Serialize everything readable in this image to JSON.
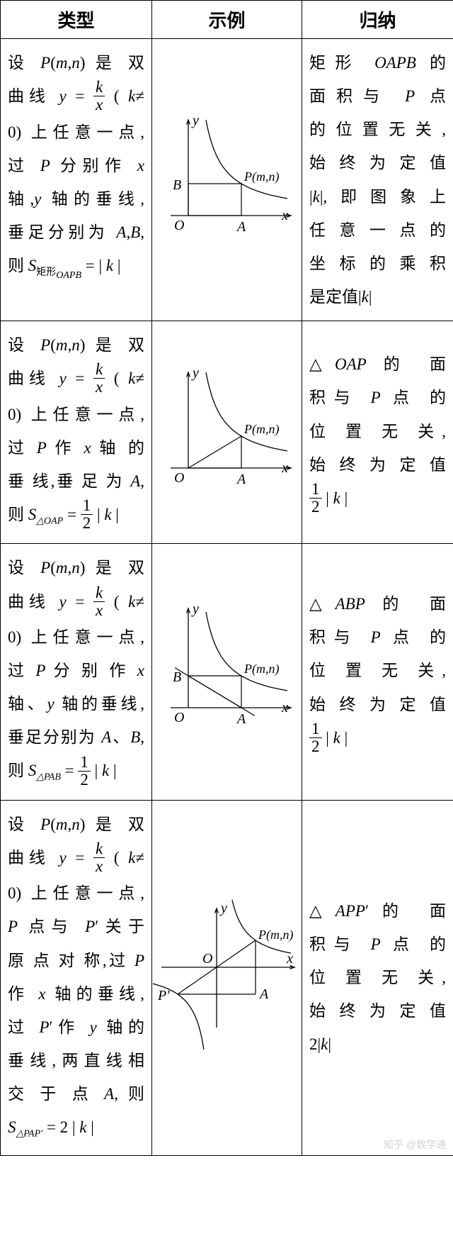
{
  "headers": {
    "c1": "类型",
    "c2": "示例",
    "c3": "归纳"
  },
  "rows": [
    {
      "type_lines": [
        "设 <span class='ital'>P</span>(<span class='ital'>m</span>,<span class='ital'>n</span>) 是 双",
        "曲线 <span class='ital'>y</span> = <span class='frac'><span class='num'>k</span><span class='den'>x</span></span> ( <span class='ital'>k</span>≠",
        "0) 上任意一点,",
        "过 <span class='ital'>P</span> 分别作 <span class='ital'>x</span>",
        "轴,<span class='ital'>y</span> 轴的垂线,",
        "垂足分别为 <span class='ital'>A</span>,<span class='ital'>B</span>,",
        "则 <span class='ital'>S</span><span class='sub'>矩形<span class='subi'>OAPB</span></span> = | <span class='ital'>k</span> |"
      ],
      "concl_lines": [
        "矩形 <span class='ital'>OAPB</span> 的",
        "面积与 <span class='ital'>P</span> 点",
        "的位置无关,",
        "始终为定值",
        "|<span class='ital'>k</span>|,即图象上",
        "任意一点的",
        "坐标的乘积",
        "是定值|<span class='ital'>k</span>|"
      ],
      "diagram": 1
    },
    {
      "type_lines": [
        "设 <span class='ital'>P</span>(<span class='ital'>m</span>,<span class='ital'>n</span>) 是 双",
        "曲线 <span class='ital'>y</span> = <span class='frac'><span class='num'>k</span><span class='den'>x</span></span> ( <span class='ital'>k</span>≠",
        "0) 上任意一点,",
        "过 <span class='ital'>P</span> 作 <span class='ital'>x</span> 轴 的",
        "垂 线,垂 足 为 <span class='ital'>A</span>,",
        "则 <span class='ital'>S</span><span class='subi'>△OAP</span> = <span class='frac nfrac'><span class='num'>1</span><span class='den'>2</span></span> | <span class='ital'>k</span> |"
      ],
      "concl_lines": [
        "△<span class='ital'>OAP</span> 的 面",
        "积与 <span class='ital'>P</span> 点 的",
        "位 置 无 关,",
        "始终为定值",
        "<span class='frac nfrac'><span class='num'>1</span><span class='den'>2</span></span> | <span class='ital'>k</span> |"
      ],
      "diagram": 2
    },
    {
      "type_lines": [
        "设 <span class='ital'>P</span>(<span class='ital'>m</span>,<span class='ital'>n</span>) 是 双",
        "曲线 <span class='ital'>y</span> = <span class='frac'><span class='num'>k</span><span class='den'>x</span></span> ( <span class='ital'>k</span>≠",
        "0) 上任意一点,",
        "过 <span class='ital'>P</span> 分 别 作 <span class='ital'>x</span>",
        "轴、<span class='ital'>y</span> 轴的垂线,",
        "垂足分别为 <span class='ital'>A</span>、<span class='ital'>B</span>,",
        "则 <span class='ital'>S</span><span class='subi'>△PAB</span> = <span class='frac nfrac'><span class='num'>1</span><span class='den'>2</span></span> | <span class='ital'>k</span> |"
      ],
      "concl_lines": [
        "△<span class='ital'>ABP</span> 的 面",
        "积与 <span class='ital'>P</span> 点 的",
        "位 置 无 关,",
        "始终为定值",
        "<span class='frac nfrac'><span class='num'>1</span><span class='den'>2</span></span> | <span class='ital'>k</span> |"
      ],
      "diagram": 3
    },
    {
      "type_lines": [
        "设 <span class='ital'>P</span>(<span class='ital'>m</span>,<span class='ital'>n</span>) 是 双",
        "曲线 <span class='ital'>y</span> = <span class='frac'><span class='num'>k</span><span class='den'>x</span></span> ( <span class='ital'>k</span>≠",
        "0) 上任意一点,",
        "<span class='ital'>P</span> 点与 <span class='ital'>P</span>′关于",
        "原 点 对 称,过 <span class='ital'>P</span>",
        "作 <span class='ital'>x</span> 轴的垂线,",
        "过 <span class='ital'>P</span>′作 <span class='ital'>y</span> 轴的",
        "垂线,两直线相",
        "交 于 点 <span class='ital'>A</span>, 则",
        "<span class='ital'>S</span><span class='subi'>△PAP′</span> = 2 | <span class='ital'>k</span> |"
      ],
      "concl_lines": [
        "△<span class='ital'>APP</span>′的 面",
        "积与 <span class='ital'>P</span> 点 的",
        "位 置 无 关,",
        "始终为定值",
        "2|<span class='ital'>k</span>|"
      ],
      "diagram": 4
    }
  ],
  "diagrams": {
    "stroke": "#000000",
    "stroke_width": 1.3,
    "label_fontsize": 20,
    "P_label": "P(m,n)",
    "O_label": "O",
    "A_label": "A",
    "B_label": "B",
    "x_label": "x",
    "y_label": "y",
    "Pp_label": "P′"
  },
  "watermark": "知乎 @数学通"
}
